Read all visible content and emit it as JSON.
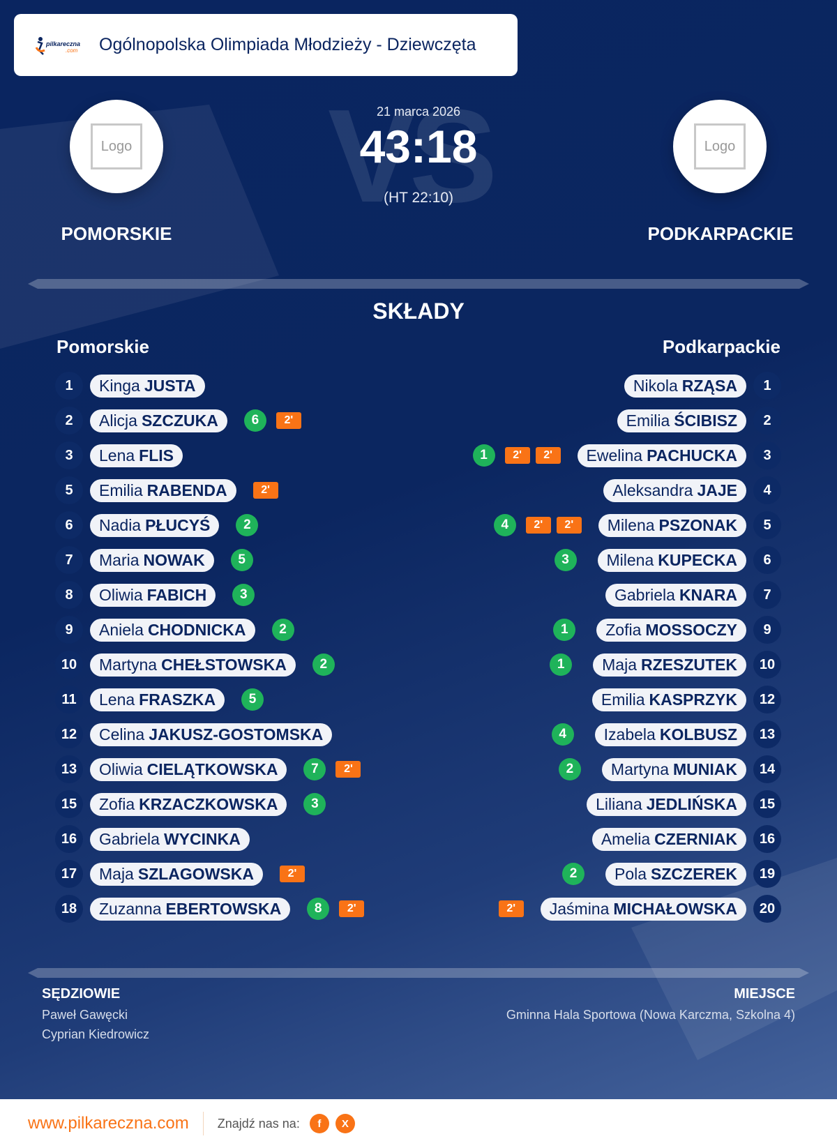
{
  "header": {
    "title": "Ogólnopolska Olimpiada Młodzieży - Dziewczęta",
    "brand": "pilkareczna.com"
  },
  "match": {
    "date": "21 marca 2026",
    "score": "43:18",
    "halftime": "(HT 22:10)",
    "vs": "VS",
    "home": {
      "name": "POMORSKIE",
      "logo": "Logo"
    },
    "away": {
      "name": "PODKARPACKIE",
      "logo": "Logo"
    }
  },
  "lineups": {
    "title": "SKŁADY",
    "home_label": "Pomorskie",
    "away_label": "Podkarpackie",
    "home": [
      {
        "no": "1",
        "first": "Kinga",
        "last": "JUSTA",
        "goals": "",
        "penalties": []
      },
      {
        "no": "2",
        "first": "Alicja",
        "last": "SZCZUKA",
        "goals": "6",
        "penalties": [
          "2'"
        ]
      },
      {
        "no": "3",
        "first": "Lena",
        "last": "FLIS",
        "goals": "",
        "penalties": []
      },
      {
        "no": "5",
        "first": "Emilia",
        "last": "RABENDA",
        "goals": "",
        "penalties": [
          "2'"
        ]
      },
      {
        "no": "6",
        "first": "Nadia",
        "last": "PŁUCYŚ",
        "goals": "2",
        "penalties": []
      },
      {
        "no": "7",
        "first": "Maria",
        "last": "NOWAK",
        "goals": "5",
        "penalties": []
      },
      {
        "no": "8",
        "first": "Oliwia",
        "last": "FABICH",
        "goals": "3",
        "penalties": []
      },
      {
        "no": "9",
        "first": "Aniela",
        "last": "CHODNICKA",
        "goals": "2",
        "penalties": []
      },
      {
        "no": "10",
        "first": "Martyna",
        "last": "CHEŁSTOWSKA",
        "goals": "2",
        "penalties": []
      },
      {
        "no": "11",
        "first": "Lena",
        "last": "FRASZKA",
        "goals": "5",
        "penalties": []
      },
      {
        "no": "12",
        "first": "Celina",
        "last": "JAKUSZ-GOSTOMSKA",
        "goals": "",
        "penalties": []
      },
      {
        "no": "13",
        "first": "Oliwia",
        "last": "CIELĄTKOWSKA",
        "goals": "7",
        "penalties": [
          "2'"
        ]
      },
      {
        "no": "15",
        "first": "Zofia",
        "last": "KRZACZKOWSKA",
        "goals": "3",
        "penalties": []
      },
      {
        "no": "16",
        "first": "Gabriela",
        "last": "WYCINKA",
        "goals": "",
        "penalties": []
      },
      {
        "no": "17",
        "first": "Maja",
        "last": "SZLAGOWSKA",
        "goals": "",
        "penalties": [
          "2'"
        ]
      },
      {
        "no": "18",
        "first": "Zuzanna",
        "last": "EBERTOWSKA",
        "goals": "8",
        "penalties": [
          "2'"
        ]
      }
    ],
    "away": [
      {
        "no": "1",
        "first": "Nikola",
        "last": "RZĄSA",
        "goals": "",
        "penalties": []
      },
      {
        "no": "2",
        "first": "Emilia",
        "last": "ŚCIBISZ",
        "goals": "",
        "penalties": []
      },
      {
        "no": "3",
        "first": "Ewelina",
        "last": "PACHUCKA",
        "goals": "1",
        "penalties": [
          "2'",
          "2'"
        ]
      },
      {
        "no": "4",
        "first": "Aleksandra",
        "last": "JAJE",
        "goals": "",
        "penalties": []
      },
      {
        "no": "5",
        "first": "Milena",
        "last": "PSZONAK",
        "goals": "4",
        "penalties": [
          "2'",
          "2'"
        ]
      },
      {
        "no": "6",
        "first": "Milena",
        "last": "KUPECKA",
        "goals": "3",
        "penalties": []
      },
      {
        "no": "7",
        "first": "Gabriela",
        "last": "KNARA",
        "goals": "",
        "penalties": []
      },
      {
        "no": "9",
        "first": "Zofia",
        "last": "MOSSOCZY",
        "goals": "1",
        "penalties": []
      },
      {
        "no": "10",
        "first": "Maja",
        "last": "RZESZUTEK",
        "goals": "1",
        "penalties": []
      },
      {
        "no": "12",
        "first": "Emilia",
        "last": "KASPRZYK",
        "goals": "",
        "penalties": []
      },
      {
        "no": "13",
        "first": "Izabela",
        "last": "KOLBUSZ",
        "goals": "4",
        "penalties": []
      },
      {
        "no": "14",
        "first": "Martyna",
        "last": "MUNIAK",
        "goals": "2",
        "penalties": []
      },
      {
        "no": "15",
        "first": "Liliana",
        "last": "JEDLIŃSKA",
        "goals": "",
        "penalties": []
      },
      {
        "no": "16",
        "first": "Amelia",
        "last": "CZERNIAK",
        "goals": "",
        "penalties": []
      },
      {
        "no": "19",
        "first": "Pola",
        "last": "SZCZEREK",
        "goals": "2",
        "penalties": []
      },
      {
        "no": "20",
        "first": "Jaśmina",
        "last": "MICHAŁOWSKA",
        "goals": "",
        "penalties": [
          "2'"
        ]
      }
    ]
  },
  "officials": {
    "label": "SĘDZIOWIE",
    "names": [
      "Paweł Gawęcki",
      "Cyprian Kiedrowicz"
    ]
  },
  "venue": {
    "label": "MIEJSCE",
    "name": "Gminna Hala Sportowa (Nowa Karczma, Szkolna 4)"
  },
  "footer": {
    "site": "www.pilkareczna.com",
    "find_us": "Znajdź nas na:",
    "social": [
      {
        "icon": "facebook-icon",
        "glyph": "f"
      },
      {
        "icon": "x-icon",
        "glyph": "X"
      }
    ]
  },
  "colors": {
    "background": "#0b2560",
    "goal": "#1fb35a",
    "penalty": "#f97316",
    "accent": "#f97316"
  }
}
